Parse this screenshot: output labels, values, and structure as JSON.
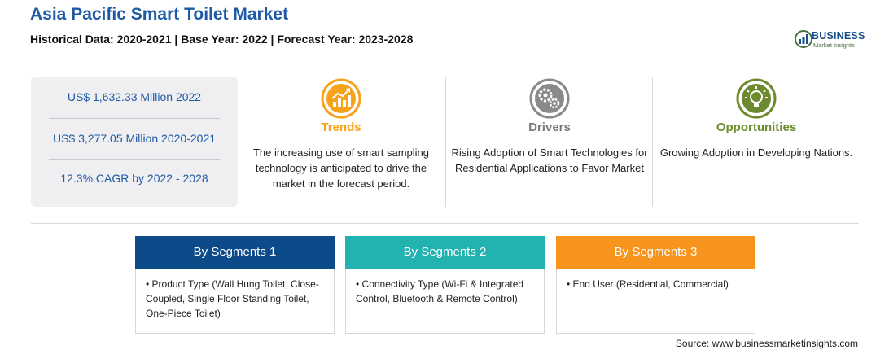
{
  "header": {
    "title": "Asia Pacific Smart Toilet Market",
    "subtitle": "Historical Data: 2020-2021 | Base Year: 2022 | Forecast Year: 2023-2028"
  },
  "logo": {
    "word1": "BUSINESS",
    "word2": "Market Insights",
    "colors": {
      "primary": "#1a4f86",
      "secondary": "#4a6f43"
    }
  },
  "stats": [
    "US$ 1,632.33 Million 2022",
    "US$ 3,277.05 Million 2020-2021",
    "12.3% CAGR by 2022 - 2028"
  ],
  "columns": {
    "trends": {
      "icon": "rising-chart-icon",
      "heading": "Trends",
      "description": "The increasing use of smart sampling technology is anticipated to drive the market in the forecast period.",
      "color": "#f7a21b"
    },
    "drivers": {
      "icon": "gears-icon",
      "heading": "Drivers",
      "description": "Rising Adoption of Smart Technologies for Residential Applications to Favor Market",
      "color": "#7a7a7a"
    },
    "opportunities": {
      "icon": "lightbulb-icon",
      "heading": "Opportunities",
      "description": "Growing Adoption in Developing Nations.",
      "color": "#6d8b2e"
    }
  },
  "segments": [
    {
      "heading": "By Segments 1",
      "body": "• Product Type (Wall Hung Toilet, Close-Coupled, Single Floor Standing Toilet, One-Piece Toilet)",
      "color": "#0d4a8a"
    },
    {
      "heading": "By Segments 2",
      "body": "• Connectivity Type (Wi-Fi & Integrated Control, Bluetooth & Remote Control)",
      "color": "#22b3b0"
    },
    {
      "heading": "By Segments 3",
      "body": "• End User (Residential, Commercial)",
      "color": "#f7941d"
    }
  ],
  "source": "Source: www.businessmarketinsights.com"
}
